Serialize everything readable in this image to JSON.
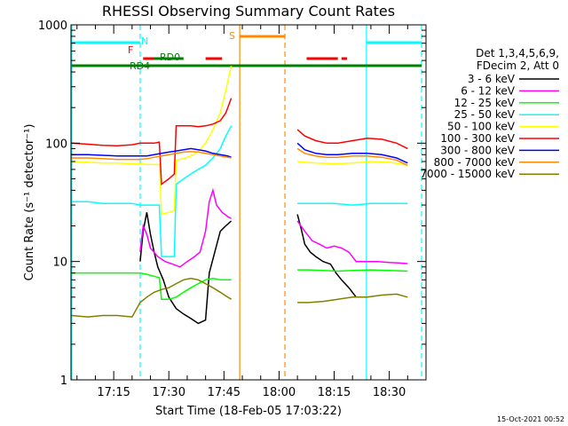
{
  "chart_data": {
    "type": "line",
    "title": "RHESSI Observing Summary Count Rates",
    "xlabel": "Start Time (18-Feb-05 17:03:22)",
    "ylabel": "Count Rate (s⁻¹ detector⁻¹)",
    "x_ticks": [
      "17:15",
      "17:30",
      "17:45",
      "18:00",
      "18:15",
      "18:30"
    ],
    "x_tick_minutes": [
      15,
      30,
      45,
      60,
      75,
      90
    ],
    "x_range_minutes": [
      3.37,
      100.0
    ],
    "y_scale": "log",
    "y_range": [
      1,
      1000
    ],
    "y_ticks": [
      "1",
      "10",
      "100",
      "1000"
    ],
    "legend_header": [
      "Det 1,3,4,5,6,9,",
      "FDecim 2, Att 0"
    ],
    "legend_placement": "right",
    "footer_date": "15-Oct-2021 00:52",
    "flag_labels": [
      "N",
      "F",
      "RD0",
      "RD4",
      "S"
    ],
    "series": [
      {
        "name": "3 - 6 keV",
        "color": "#000000",
        "segments": [
          {
            "x": [
              22.2,
              23.0,
              24.0,
              25.0,
              26.0,
              27.0,
              28.5,
              30.0,
              32.0,
              34.0,
              36.0,
              38.0,
              40.0,
              41.0,
              42.5,
              44.0,
              45.5,
              47.0
            ],
            "y": [
              10,
              18,
              26,
              17,
              12,
              9,
              7,
              5,
              4,
              3.6,
              3.3,
              3,
              3.2,
              8,
              12,
              18,
              20,
              22
            ]
          },
          {
            "x": [
              65.0,
              66.0,
              67.0,
              68.5,
              70.0,
              72.0,
              74.0,
              75.5,
              77.0,
              79.0,
              81.0
            ],
            "y": [
              25,
              19,
              14,
              12,
              11,
              10,
              9.5,
              8,
              7,
              6,
              5
            ]
          }
        ]
      },
      {
        "name": "6 - 12 keV",
        "color": "#ff00ff",
        "segments": [
          {
            "x": [
              22.2,
              23.0,
              24.0,
              25.0,
              27.0,
              29.0,
              31.0,
              33.0,
              35.0,
              37.0,
              38.5,
              40.0,
              41.0,
              42.0,
              43.0,
              44.5,
              46.0,
              47.0
            ],
            "y": [
              12,
              20,
              17,
              13,
              11,
              10,
              9.5,
              9,
              10,
              11,
              12,
              18,
              32,
              40,
              30,
              26,
              24,
              23
            ]
          },
          {
            "x": [
              65.0,
              67.0,
              69.0,
              71.0,
              73.0,
              75.0,
              77.0,
              79.0,
              81.0,
              84.0,
              87.0,
              90.0,
              93.0,
              95.0
            ],
            "y": [
              22,
              18,
              15,
              14,
              13,
              13.5,
              13,
              12,
              10,
              10,
              10,
              9.8,
              9.7,
              9.6
            ]
          }
        ]
      },
      {
        "name": "12 - 25 keV",
        "color": "#00ff00",
        "segments": [
          {
            "x": [
              3.5,
              8.0,
              12.0,
              16.0,
              20.0,
              22.2,
              24.0,
              26.0,
              27.4,
              28.0,
              30.0,
              32.0,
              34.0,
              36.0,
              38.0,
              40.0,
              42.0,
              44.0,
              46.0,
              47.0
            ],
            "y": [
              8,
              8,
              8,
              8,
              8,
              8,
              7.8,
              7.5,
              7.3,
              4.8,
              4.8,
              5,
              5.5,
              6,
              6.5,
              7,
              7.2,
              7,
              7,
              7
            ]
          },
          {
            "x": [
              65.0,
              68.0,
              72.0,
              76.0,
              80.0,
              85.0,
              90.0,
              95.0
            ],
            "y": [
              8.5,
              8.5,
              8.4,
              8.3,
              8.4,
              8.5,
              8.4,
              8.3
            ]
          }
        ]
      },
      {
        "name": "25 - 50 keV",
        "color": "#00ffff",
        "segments": [
          {
            "x": [
              3.5,
              8.0,
              12.0,
              16.0,
              20.0,
              22.2,
              24.0,
              26.0,
              27.4,
              28.0,
              30.0,
              31.5,
              32.0,
              34.0,
              36.0,
              38.0,
              40.0,
              42.0,
              44.0,
              45.5,
              47.0
            ],
            "y": [
              32,
              32,
              31,
              31,
              31,
              30,
              30,
              30,
              30,
              11,
              11,
              11,
              45,
              50,
              55,
              60,
              65,
              75,
              90,
              115,
              140
            ]
          },
          {
            "x": [
              65.0,
              70.0,
              75.0,
              80.0,
              85.0,
              90.0,
              95.0
            ],
            "y": [
              31,
              31,
              31,
              30,
              31,
              31,
              31
            ]
          }
        ]
      },
      {
        "name": "50 - 100 keV",
        "color": "#ffff00",
        "segments": [
          {
            "x": [
              3.5,
              8.0,
              12.0,
              16.0,
              20.0,
              22.2,
              24.0,
              26.0,
              27.4,
              28.0,
              30.0,
              31.5,
              32.0,
              34.0,
              36.0,
              38.0,
              40.0,
              42.0,
              44.0,
              45.5,
              47.0
            ],
            "y": [
              70,
              69,
              68,
              68,
              67,
              67,
              66,
              66,
              66,
              25,
              26,
              27,
              72,
              74,
              78,
              85,
              100,
              130,
              180,
              280,
              450
            ]
          },
          {
            "x": [
              65.0,
              70.0,
              75.0,
              80.0,
              85.0,
              90.0,
              95.0
            ],
            "y": [
              70,
              68,
              67,
              68,
              70,
              69,
              65
            ]
          }
        ]
      },
      {
        "name": "100 - 300 keV",
        "color": "#ff0000",
        "segments": [
          {
            "x": [
              3.5,
              8.0,
              12.0,
              16.0,
              20.0,
              22.2,
              24.0,
              26.0,
              27.4,
              28.0,
              30.0,
              31.5,
              32.0,
              34.0,
              36.0,
              38.0,
              40.0,
              42.0,
              44.0,
              45.5,
              47.0
            ],
            "y": [
              100,
              98,
              96,
              95,
              97,
              100,
              100,
              100,
              102,
              45,
              50,
              55,
              140,
              140,
              140,
              138,
              140,
              145,
              155,
              180,
              240
            ]
          },
          {
            "x": [
              65.0,
              67.0,
              70.0,
              73.0,
              76.0,
              80.0,
              84.0,
              88.0,
              92.0,
              95.0
            ],
            "y": [
              130,
              115,
              105,
              100,
              100,
              105,
              110,
              108,
              100,
              90
            ]
          }
        ]
      },
      {
        "name": "300 - 800 keV",
        "color": "#0000ff",
        "segments": [
          {
            "x": [
              3.5,
              8.0,
              12.0,
              16.0,
              20.0,
              22.2,
              24.0,
              26.0,
              28.0,
              30.0,
              32.0,
              34.0,
              36.0,
              38.0,
              40.0,
              42.0,
              44.0,
              46.0,
              47.0
            ],
            "y": [
              80,
              80,
              79,
              78,
              78,
              78,
              78,
              80,
              82,
              84,
              86,
              88,
              90,
              88,
              86,
              82,
              80,
              78,
              76
            ]
          },
          {
            "x": [
              65.0,
              67.0,
              70.0,
              73.0,
              76.0,
              80.0,
              84.0,
              88.0,
              92.0,
              95.0
            ],
            "y": [
              100,
              88,
              82,
              80,
              80,
              82,
              82,
              80,
              75,
              68
            ]
          }
        ]
      },
      {
        "name": "800 - 7000 keV",
        "color": "#ff8c00",
        "segments": [
          {
            "x": [
              3.5,
              8.0,
              12.0,
              16.0,
              20.0,
              22.2,
              24.0,
              26.0,
              28.0,
              30.0,
              32.0,
              34.0,
              36.0,
              38.0,
              40.0,
              42.0,
              44.0,
              46.0,
              47.0
            ],
            "y": [
              75,
              75,
              74,
              73,
              73,
              73,
              74,
              76,
              78,
              80,
              82,
              84,
              85,
              84,
              82,
              80,
              78,
              76,
              75
            ]
          },
          {
            "x": [
              65.0,
              67.0,
              70.0,
              73.0,
              76.0,
              80.0,
              84.0,
              88.0,
              92.0,
              95.0
            ],
            "y": [
              90,
              82,
              78,
              76,
              76,
              78,
              78,
              76,
              72,
              65
            ]
          }
        ]
      },
      {
        "name": "7000 - 15000 keV",
        "color": "#808000",
        "segments": [
          {
            "x": [
              3.5,
              8.0,
              12.0,
              16.0,
              20.0,
              22.2,
              24.0,
              26.0,
              28.0,
              30.0,
              32.0,
              34.0,
              36.0,
              38.0,
              40.0,
              42.0,
              44.0,
              46.0,
              47.0
            ],
            "y": [
              3.5,
              3.4,
              3.5,
              3.5,
              3.4,
              4.5,
              5,
              5.5,
              5.8,
              6,
              6.5,
              7,
              7.2,
              7,
              6.5,
              6,
              5.5,
              5,
              4.8
            ]
          },
          {
            "x": [
              65.0,
              68.0,
              72.0,
              76.0,
              80.0,
              84.0,
              88.0,
              92.0,
              95.0
            ],
            "y": [
              4.5,
              4.5,
              4.6,
              4.8,
              5,
              5,
              5.2,
              5.3,
              5
            ]
          }
        ]
      }
    ],
    "vertical_markers": [
      {
        "minute": 3.6,
        "color": "#00ffff",
        "style": "solid"
      },
      {
        "minute": 22.2,
        "color": "#00ffff",
        "style": "dashed"
      },
      {
        "minute": 83.8,
        "color": "#00ffff",
        "style": "solid"
      },
      {
        "minute": 98.8,
        "color": "#00ffff",
        "style": "dashed"
      },
      {
        "minute": 49.3,
        "color": "#ff8c00",
        "style": "solid"
      },
      {
        "minute": 61.6,
        "color": "#ff8c00",
        "style": "dashed"
      }
    ],
    "flag_bars": [
      {
        "name": "N",
        "color": "#00ffff",
        "row": 1,
        "spans": [
          [
            3.6,
            22.2
          ],
          [
            83.8,
            98.8
          ]
        ]
      },
      {
        "name": "F",
        "color": "#ff0000",
        "row": 2,
        "spans": [
          [
            23.0,
            29.0
          ],
          [
            40.0,
            44.5
          ],
          [
            67.5,
            76.0
          ],
          [
            77.0,
            78.5
          ]
        ]
      },
      {
        "name": "RD0",
        "color": "#008000",
        "row": 3,
        "spans": [
          [
            3.6,
            98.8
          ]
        ]
      },
      {
        "name": "RD4",
        "color": "#008000",
        "row": 4,
        "spans": [
          [
            26.0,
            34.0
          ]
        ]
      },
      {
        "name": "S",
        "color": "#ff8c00",
        "row": 0,
        "spans": [
          [
            49.3,
            61.6
          ]
        ]
      }
    ]
  }
}
